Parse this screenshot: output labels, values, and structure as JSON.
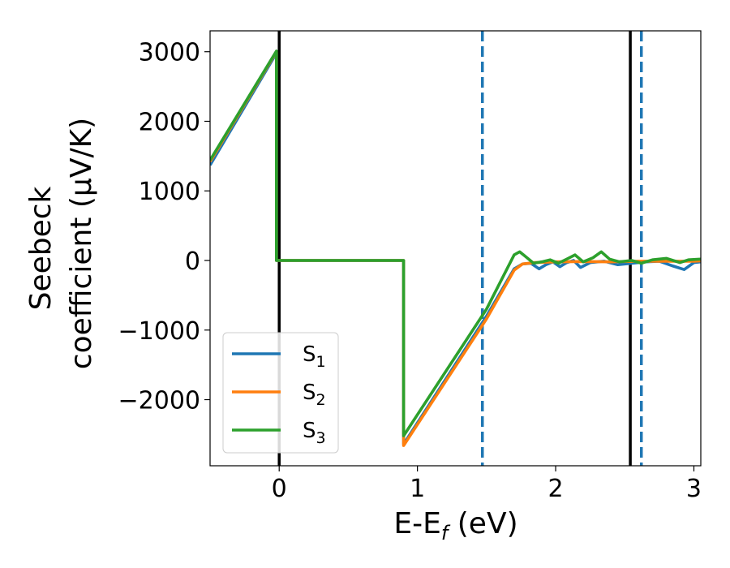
{
  "chart_data": {
    "type": "line",
    "title": "",
    "xlabel": "E-E",
    "xlabel_sub": "f",
    "xlabel_unit": " (eV)",
    "ylabel_line1": "Seebeck",
    "ylabel_line2": "coefficient  (μV/K)",
    "xlim": [
      -0.5,
      3.05
    ],
    "ylim": [
      -2950,
      3300
    ],
    "xticks": [
      0,
      1,
      2,
      3
    ],
    "xtick_labels": [
      "0",
      "1",
      "2",
      "3"
    ],
    "yticks": [
      -2000,
      -1000,
      0,
      1000,
      2000,
      3000
    ],
    "ytick_labels": [
      "−2000",
      "−1000",
      "0",
      "1000",
      "2000",
      "3000"
    ],
    "grid": false,
    "legend_position": "lower-left",
    "vlines": [
      {
        "x": 0.0,
        "style": "solid",
        "color": "#000000"
      },
      {
        "x": 2.54,
        "style": "solid",
        "color": "#000000"
      },
      {
        "x": 1.47,
        "style": "dashed",
        "color": "#1f77b4"
      },
      {
        "x": 2.62,
        "style": "dashed",
        "color": "#1f77b4"
      }
    ],
    "series": [
      {
        "name": "S",
        "sub": "1",
        "color": "#1f77b4",
        "points": [
          [
            -0.5,
            1370
          ],
          [
            -0.02,
            2980
          ],
          [
            -0.02,
            0
          ],
          [
            0.9,
            0
          ],
          [
            0.9,
            -2640
          ],
          [
            1.5,
            -800
          ],
          [
            1.7,
            -120
          ],
          [
            1.76,
            -50
          ],
          [
            1.82,
            -40
          ],
          [
            1.88,
            -120
          ],
          [
            1.93,
            -60
          ],
          [
            1.98,
            -20
          ],
          [
            2.03,
            -90
          ],
          [
            2.08,
            -30
          ],
          [
            2.13,
            0
          ],
          [
            2.18,
            -100
          ],
          [
            2.25,
            -30
          ],
          [
            2.35,
            -10
          ],
          [
            2.45,
            -60
          ],
          [
            2.55,
            -40
          ],
          [
            2.65,
            -20
          ],
          [
            2.75,
            -10
          ],
          [
            2.85,
            -80
          ],
          [
            2.93,
            -130
          ],
          [
            3.0,
            -30
          ],
          [
            3.05,
            -20
          ]
        ]
      },
      {
        "name": "S",
        "sub": "2",
        "color": "#ff7f0e",
        "points": [
          [
            -0.5,
            1420
          ],
          [
            -0.02,
            3000
          ],
          [
            -0.02,
            0
          ],
          [
            0.9,
            0
          ],
          [
            0.9,
            -2660
          ],
          [
            1.5,
            -840
          ],
          [
            1.7,
            -140
          ],
          [
            1.76,
            -50
          ],
          [
            1.85,
            -30
          ],
          [
            2.0,
            -20
          ],
          [
            2.2,
            -15
          ],
          [
            2.4,
            -20
          ],
          [
            2.6,
            -10
          ],
          [
            2.8,
            -10
          ],
          [
            3.0,
            -10
          ],
          [
            3.05,
            -5
          ]
        ]
      },
      {
        "name": "S",
        "sub": "3",
        "color": "#2ca02c",
        "points": [
          [
            -0.5,
            1440
          ],
          [
            -0.02,
            3010
          ],
          [
            -0.02,
            0
          ],
          [
            0.9,
            0
          ],
          [
            0.9,
            -2520
          ],
          [
            1.5,
            -700
          ],
          [
            1.7,
            80
          ],
          [
            1.74,
            125
          ],
          [
            1.78,
            60
          ],
          [
            1.84,
            -40
          ],
          [
            1.9,
            -20
          ],
          [
            1.96,
            10
          ],
          [
            2.02,
            -40
          ],
          [
            2.08,
            20
          ],
          [
            2.14,
            80
          ],
          [
            2.2,
            -20
          ],
          [
            2.27,
            40
          ],
          [
            2.33,
            125
          ],
          [
            2.39,
            20
          ],
          [
            2.46,
            -20
          ],
          [
            2.55,
            0
          ],
          [
            2.62,
            -40
          ],
          [
            2.7,
            10
          ],
          [
            2.8,
            30
          ],
          [
            2.9,
            -30
          ],
          [
            2.96,
            10
          ],
          [
            3.05,
            20
          ]
        ]
      }
    ]
  }
}
